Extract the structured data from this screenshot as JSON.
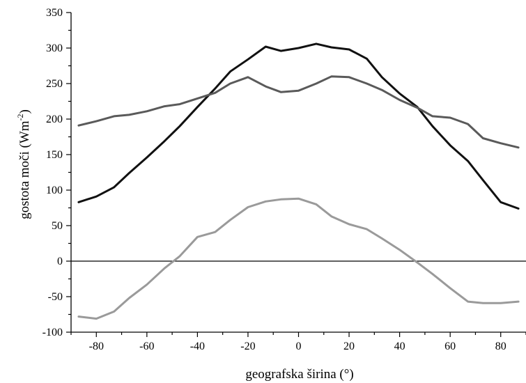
{
  "chart_data": {
    "type": "line",
    "xlabel": "geografska širina (°)",
    "ylabel_main": "gostota moči (Wm",
    "ylabel_sup": "-2",
    "ylabel_close": ")",
    "xlim": [
      -90,
      90
    ],
    "ylim": [
      -100,
      350
    ],
    "xticks": [
      -80,
      -60,
      -40,
      -20,
      0,
      20,
      40,
      60,
      80
    ],
    "yticks": [
      -100,
      -50,
      0,
      50,
      100,
      150,
      200,
      250,
      300,
      350
    ],
    "zero_line": true,
    "series": [
      {
        "color": "#111111",
        "x": [
          -87,
          -80,
          -73,
          -67,
          -60,
          -53,
          -47,
          -40,
          -33,
          -27,
          -20,
          -13,
          -7,
          0,
          7,
          13,
          20,
          27,
          33,
          40,
          47,
          53,
          60,
          67,
          73,
          80,
          87
        ],
        "y": [
          83,
          91,
          104,
          124,
          146,
          169,
          190,
          217,
          243,
          267,
          284,
          302,
          296,
          300,
          306,
          301,
          298,
          285,
          259,
          236,
          217,
          190,
          163,
          141,
          114,
          83,
          74
        ]
      },
      {
        "color": "#5a5a5a",
        "x": [
          -87,
          -80,
          -73,
          -67,
          -60,
          -53,
          -47,
          -40,
          -33,
          -27,
          -20,
          -13,
          -7,
          0,
          7,
          13,
          20,
          27,
          33,
          40,
          47,
          53,
          60,
          67,
          73,
          80,
          87
        ],
        "y": [
          191,
          197,
          204,
          206,
          211,
          218,
          221,
          229,
          237,
          250,
          259,
          246,
          238,
          240,
          250,
          260,
          259,
          250,
          241,
          227,
          216,
          204,
          202,
          193,
          173,
          166,
          160
        ]
      },
      {
        "color": "#9a9a9a",
        "x": [
          -87,
          -80,
          -73,
          -67,
          -60,
          -53,
          -47,
          -40,
          -33,
          -27,
          -20,
          -13,
          -7,
          0,
          7,
          13,
          20,
          27,
          33,
          40,
          47,
          53,
          60,
          67,
          73,
          80,
          87
        ],
        "y": [
          -78,
          -81,
          -71,
          -52,
          -33,
          -10,
          7,
          34,
          41,
          58,
          76,
          84,
          87,
          88,
          80,
          63,
          52,
          45,
          32,
          16,
          -2,
          -18,
          -38,
          -57,
          -59,
          -59,
          -57
        ]
      }
    ]
  }
}
